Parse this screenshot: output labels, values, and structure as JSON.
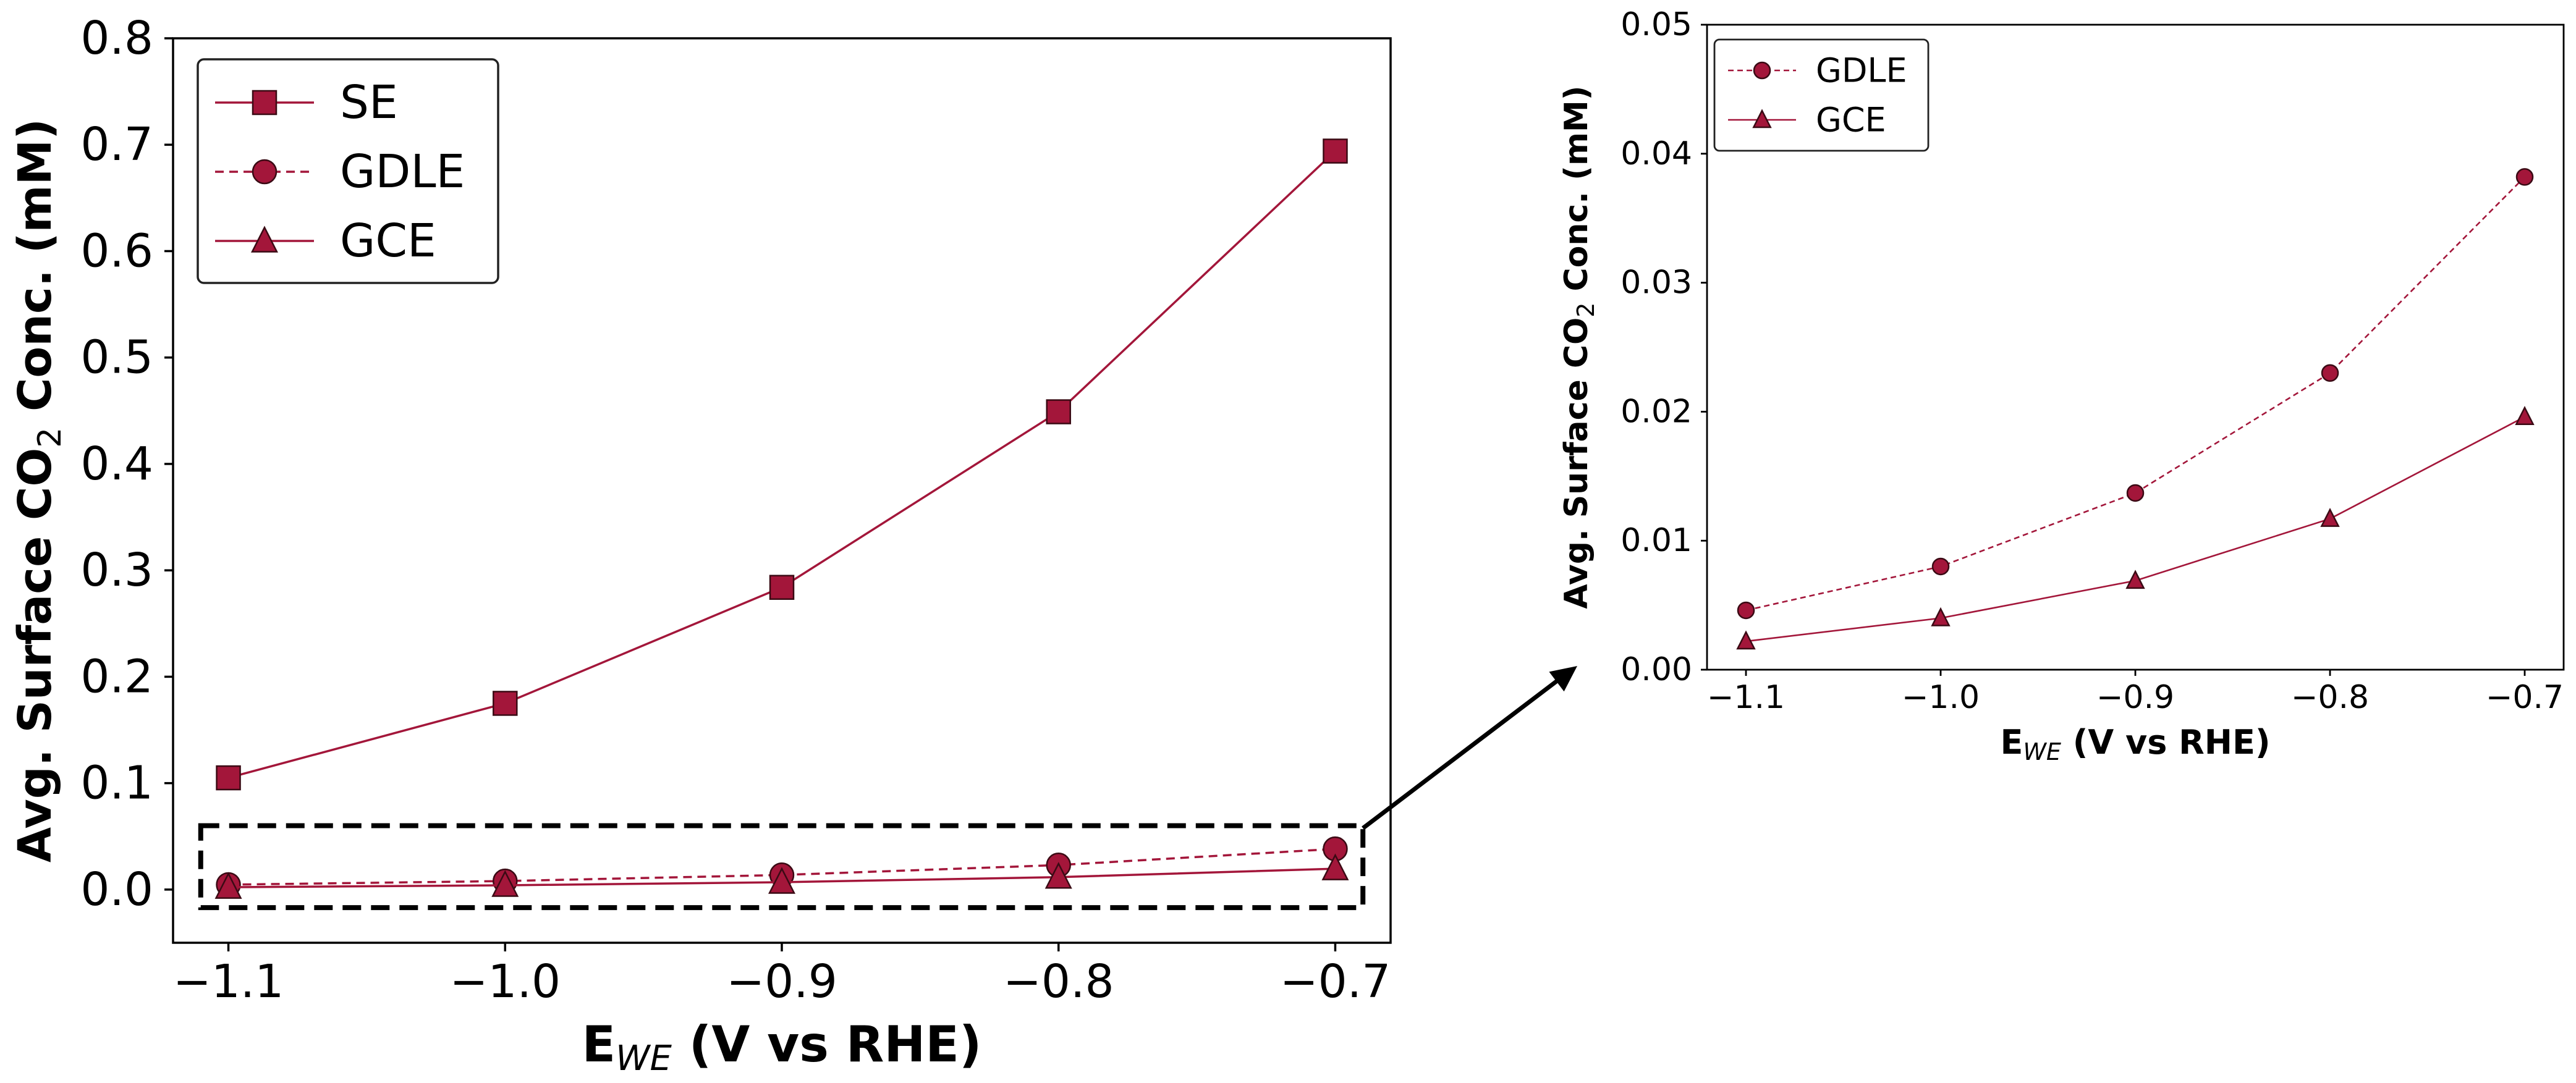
{
  "chart_data": [
    {
      "type": "line",
      "panel": "main",
      "x": [
        -1.1,
        -1.0,
        -0.9,
        -0.8,
        -0.7
      ],
      "series": [
        {
          "name": "SE",
          "marker": "square",
          "linestyle": "solid",
          "values": [
            0.105,
            0.175,
            0.284,
            0.449,
            0.694
          ]
        },
        {
          "name": "GDLE",
          "marker": "circle",
          "linestyle": "dashed",
          "values": [
            0.0046,
            0.008,
            0.0137,
            0.023,
            0.0382
          ]
        },
        {
          "name": "GCE",
          "marker": "triangle",
          "linestyle": "solid",
          "values": [
            0.0022,
            0.004,
            0.0069,
            0.0117,
            0.0196
          ]
        }
      ],
      "xlim": [
        -1.12,
        -0.68
      ],
      "ylim": [
        -0.05,
        0.8
      ],
      "xticks": [
        -1.1,
        -1.0,
        -0.9,
        -0.8,
        -0.7
      ],
      "xtick_labels": [
        "−1.1",
        "−1.0",
        "−0.9",
        "−0.8",
        "−0.7"
      ],
      "yticks": [
        0.0,
        0.1,
        0.2,
        0.3,
        0.4,
        0.5,
        0.6,
        0.7,
        0.8
      ],
      "ytick_labels": [
        "0.0",
        "0.1",
        "0.2",
        "0.3",
        "0.4",
        "0.5",
        "0.6",
        "0.7",
        "0.8"
      ],
      "xlabel": {
        "main": "E",
        "sub": "WE",
        "rest": " (V vs RHE)"
      },
      "ylabel": {
        "main": "Avg. Surface CO",
        "sub": "2",
        "rest": " Conc. (mM)"
      },
      "legend": "upper-left",
      "zoom_box": {
        "x_range": [
          -1.11,
          -0.69
        ],
        "y_range": [
          -0.017,
          0.06
        ]
      }
    },
    {
      "type": "line",
      "panel": "inset",
      "x": [
        -1.1,
        -1.0,
        -0.9,
        -0.8,
        -0.7
      ],
      "series": [
        {
          "name": "GDLE",
          "marker": "circle",
          "linestyle": "dashed",
          "values": [
            0.0046,
            0.008,
            0.0137,
            0.023,
            0.0382
          ]
        },
        {
          "name": "GCE",
          "marker": "triangle",
          "linestyle": "solid",
          "values": [
            0.0022,
            0.004,
            0.0069,
            0.0117,
            0.0196
          ]
        }
      ],
      "xlim": [
        -1.12,
        -0.68
      ],
      "ylim": [
        0.0,
        0.05
      ],
      "xticks": [
        -1.1,
        -1.0,
        -0.9,
        -0.8,
        -0.7
      ],
      "xtick_labels": [
        "−1.1",
        "−1.0",
        "−0.9",
        "−0.8",
        "−0.7"
      ],
      "yticks": [
        0.0,
        0.01,
        0.02,
        0.03,
        0.04,
        0.05
      ],
      "ytick_labels": [
        "0.00",
        "0.01",
        "0.02",
        "0.03",
        "0.04",
        "0.05"
      ],
      "xlabel": {
        "main": "E",
        "sub": "WE",
        "rest": " (V vs RHE)"
      },
      "ylabel": {
        "main": "Avg. Surface CO",
        "sub": "2",
        "rest": " Conc. (mM)"
      },
      "legend": "upper-left"
    }
  ],
  "colors": {
    "series": "#a3163a",
    "marker_edge": "#3a0a14",
    "axis": "#000000"
  }
}
